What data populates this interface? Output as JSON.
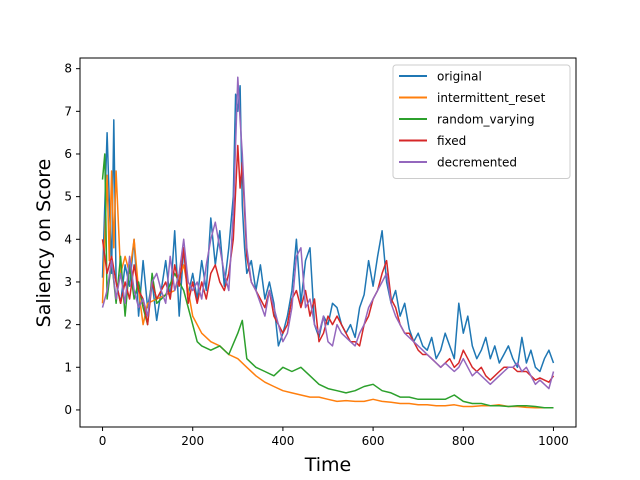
{
  "chart_data": {
    "type": "line",
    "title": "",
    "xlabel": "Time",
    "ylabel": "Saliency on Score",
    "xlim": [
      -50,
      1050
    ],
    "ylim": [
      -0.4,
      8.25
    ],
    "xticks": [
      0,
      200,
      400,
      600,
      800,
      1000
    ],
    "yticks": [
      0,
      1,
      2,
      3,
      4,
      5,
      6,
      7,
      8
    ],
    "grid": false,
    "legend_position": "top-right",
    "series": [
      {
        "name": "original",
        "color": "#1f77b4",
        "x": [
          0,
          10,
          20,
          25,
          30,
          40,
          50,
          60,
          70,
          80,
          90,
          100,
          110,
          120,
          130,
          140,
          150,
          160,
          170,
          180,
          190,
          200,
          210,
          220,
          230,
          240,
          250,
          260,
          270,
          280,
          290,
          295,
          300,
          305,
          310,
          315,
          320,
          330,
          340,
          350,
          360,
          370,
          380,
          390,
          400,
          410,
          420,
          430,
          440,
          450,
          460,
          470,
          480,
          490,
          500,
          510,
          520,
          530,
          540,
          550,
          560,
          570,
          580,
          590,
          600,
          610,
          620,
          630,
          640,
          650,
          660,
          670,
          680,
          690,
          700,
          710,
          720,
          730,
          740,
          750,
          760,
          770,
          780,
          790,
          800,
          810,
          820,
          830,
          840,
          850,
          860,
          870,
          880,
          890,
          900,
          910,
          920,
          930,
          940,
          950,
          960,
          970,
          980,
          990,
          1000
        ],
        "y": [
          3.1,
          6.5,
          3.2,
          6.8,
          3.0,
          2.5,
          3.4,
          2.9,
          4.0,
          2.2,
          3.5,
          2.4,
          3.0,
          2.1,
          2.8,
          3.5,
          2.6,
          4.2,
          2.2,
          3.8,
          2.7,
          3.2,
          2.6,
          3.5,
          2.8,
          4.5,
          3.4,
          4.2,
          2.9,
          3.8,
          5.0,
          7.4,
          7.0,
          7.6,
          4.8,
          3.8,
          3.2,
          3.5,
          2.8,
          3.4,
          2.6,
          3.0,
          2.5,
          1.5,
          1.8,
          2.2,
          2.8,
          4.0,
          2.5,
          3.5,
          3.8,
          2.0,
          1.7,
          2.2,
          2.0,
          2.5,
          2.4,
          2.0,
          1.8,
          2.0,
          1.7,
          2.4,
          2.7,
          3.5,
          2.9,
          3.6,
          4.2,
          3.0,
          2.5,
          2.8,
          2.2,
          2.5,
          1.9,
          1.6,
          1.8,
          1.5,
          1.4,
          1.7,
          1.2,
          1.4,
          1.8,
          1.5,
          1.2,
          2.5,
          1.8,
          2.2,
          1.5,
          1.2,
          1.4,
          1.7,
          1.2,
          1.5,
          1.1,
          1.3,
          1.5,
          1.2,
          1.0,
          1.7,
          1.1,
          1.4,
          1.0,
          0.9,
          1.2,
          1.4,
          1.1
        ]
      },
      {
        "name": "intermittent_reset",
        "color": "#ff7f0e",
        "x": [
          0,
          10,
          15,
          20,
          25,
          30,
          40,
          50,
          60,
          70,
          80,
          90,
          100,
          120,
          140,
          160,
          180,
          200,
          220,
          240,
          260,
          280,
          300,
          320,
          340,
          360,
          380,
          400,
          420,
          440,
          460,
          480,
          500,
          520,
          540,
          560,
          580,
          600,
          620,
          640,
          660,
          680,
          700,
          720,
          740,
          760,
          780,
          800,
          820,
          840,
          860,
          880,
          900,
          920,
          940,
          960,
          980,
          1000
        ],
        "y": [
          2.5,
          5.5,
          3.5,
          5.6,
          3.8,
          5.6,
          3.2,
          3.6,
          3.2,
          4.0,
          2.8,
          2.0,
          2.5,
          2.6,
          2.7,
          2.8,
          3.4,
          2.2,
          1.8,
          1.6,
          1.5,
          1.3,
          1.2,
          1.0,
          0.8,
          0.65,
          0.55,
          0.45,
          0.4,
          0.35,
          0.3,
          0.3,
          0.25,
          0.2,
          0.22,
          0.2,
          0.2,
          0.25,
          0.2,
          0.18,
          0.15,
          0.15,
          0.12,
          0.12,
          0.1,
          0.1,
          0.12,
          0.08,
          0.08,
          0.1,
          0.1,
          0.12,
          0.08,
          0.08,
          0.06,
          0.05,
          0.05,
          0.05
        ]
      },
      {
        "name": "random_varying",
        "color": "#2ca02c",
        "x": [
          0,
          5,
          10,
          20,
          30,
          40,
          50,
          60,
          70,
          80,
          90,
          100,
          110,
          120,
          140,
          160,
          180,
          200,
          210,
          220,
          240,
          260,
          280,
          300,
          310,
          320,
          340,
          360,
          380,
          400,
          420,
          440,
          460,
          480,
          500,
          520,
          540,
          560,
          580,
          600,
          620,
          640,
          660,
          680,
          700,
          720,
          740,
          760,
          780,
          800,
          820,
          840,
          860,
          880,
          900,
          920,
          940,
          960,
          980,
          1000
        ],
        "y": [
          5.4,
          6.0,
          2.6,
          3.5,
          2.5,
          3.6,
          2.2,
          3.4,
          2.6,
          3.0,
          2.4,
          2.0,
          3.2,
          2.5,
          2.7,
          3.2,
          2.8,
          2.0,
          1.6,
          1.5,
          1.4,
          1.5,
          1.3,
          1.8,
          2.1,
          1.2,
          1.0,
          0.9,
          0.8,
          1.0,
          0.9,
          1.0,
          0.8,
          0.6,
          0.5,
          0.45,
          0.4,
          0.45,
          0.55,
          0.6,
          0.45,
          0.4,
          0.3,
          0.3,
          0.25,
          0.25,
          0.25,
          0.25,
          0.35,
          0.2,
          0.15,
          0.15,
          0.1,
          0.1,
          0.08,
          0.1,
          0.1,
          0.08,
          0.05,
          0.05
        ]
      },
      {
        "name": "fixed",
        "color": "#d62728",
        "x": [
          0,
          10,
          20,
          30,
          40,
          50,
          60,
          70,
          80,
          90,
          100,
          110,
          120,
          130,
          140,
          150,
          160,
          170,
          180,
          190,
          200,
          210,
          220,
          230,
          240,
          250,
          260,
          270,
          280,
          290,
          300,
          305,
          310,
          320,
          330,
          340,
          350,
          360,
          370,
          380,
          390,
          400,
          410,
          420,
          430,
          440,
          450,
          460,
          470,
          480,
          490,
          500,
          510,
          520,
          530,
          540,
          550,
          560,
          570,
          580,
          590,
          600,
          610,
          620,
          630,
          640,
          650,
          660,
          670,
          680,
          690,
          700,
          710,
          720,
          730,
          740,
          750,
          760,
          770,
          780,
          790,
          800,
          810,
          820,
          830,
          840,
          850,
          860,
          870,
          880,
          890,
          900,
          910,
          920,
          930,
          940,
          950,
          960,
          970,
          980,
          990,
          1000
        ],
        "y": [
          4.0,
          3.2,
          3.6,
          3.0,
          2.5,
          3.0,
          2.6,
          3.4,
          2.8,
          2.6,
          2.0,
          3.0,
          2.6,
          2.8,
          3.0,
          2.6,
          3.4,
          2.9,
          3.8,
          2.5,
          3.0,
          2.5,
          3.0,
          2.6,
          3.2,
          3.4,
          3.0,
          2.8,
          3.2,
          4.0,
          6.2,
          5.2,
          5.8,
          3.6,
          3.0,
          2.8,
          2.6,
          2.4,
          2.8,
          2.2,
          2.0,
          1.8,
          2.0,
          2.6,
          2.8,
          2.4,
          2.8,
          2.2,
          2.6,
          1.6,
          1.8,
          2.2,
          2.0,
          2.2,
          2.0,
          1.8,
          1.6,
          1.6,
          1.5,
          2.0,
          2.2,
          2.6,
          2.8,
          3.2,
          3.5,
          2.6,
          2.4,
          2.0,
          1.8,
          1.8,
          1.6,
          1.4,
          1.3,
          1.3,
          1.2,
          1.1,
          1.0,
          1.1,
          1.2,
          1.0,
          1.1,
          1.4,
          1.2,
          1.0,
          0.9,
          1.0,
          0.8,
          0.7,
          0.8,
          0.9,
          1.0,
          1.0,
          1.0,
          0.9,
          0.9,
          0.9,
          0.8,
          0.7,
          0.75,
          0.7,
          0.65,
          0.8
        ]
      },
      {
        "name": "decremented",
        "color": "#9467bd",
        "x": [
          0,
          10,
          20,
          30,
          40,
          50,
          60,
          70,
          80,
          90,
          100,
          110,
          120,
          130,
          140,
          150,
          160,
          170,
          180,
          190,
          200,
          210,
          220,
          230,
          240,
          250,
          260,
          270,
          280,
          290,
          300,
          305,
          310,
          320,
          330,
          340,
          350,
          360,
          370,
          380,
          390,
          400,
          410,
          420,
          430,
          440,
          450,
          460,
          470,
          480,
          490,
          500,
          510,
          520,
          530,
          540,
          550,
          560,
          570,
          580,
          590,
          600,
          610,
          620,
          630,
          640,
          650,
          660,
          670,
          680,
          690,
          700,
          710,
          720,
          730,
          740,
          750,
          760,
          770,
          780,
          790,
          800,
          810,
          820,
          830,
          840,
          850,
          860,
          870,
          880,
          890,
          900,
          910,
          920,
          930,
          940,
          950,
          960,
          970,
          980,
          990,
          1000
        ],
        "y": [
          2.4,
          2.8,
          3.5,
          2.6,
          3.2,
          2.5,
          3.6,
          2.8,
          2.4,
          2.6,
          2.2,
          3.0,
          3.2,
          2.8,
          2.5,
          3.6,
          2.8,
          3.2,
          4.0,
          3.0,
          2.8,
          3.0,
          2.6,
          3.4,
          4.0,
          4.4,
          3.8,
          3.2,
          2.8,
          4.6,
          7.8,
          6.8,
          6.0,
          3.8,
          3.0,
          2.8,
          2.5,
          2.2,
          2.8,
          2.4,
          2.0,
          1.6,
          1.8,
          2.4,
          3.6,
          3.8,
          2.4,
          2.6,
          2.0,
          1.8,
          2.2,
          1.6,
          1.5,
          2.0,
          1.8,
          1.7,
          1.6,
          1.5,
          1.8,
          2.0,
          2.4,
          2.6,
          2.8,
          3.0,
          3.2,
          2.5,
          2.2,
          2.0,
          1.8,
          1.7,
          1.6,
          1.5,
          1.4,
          1.3,
          1.2,
          1.1,
          1.0,
          1.1,
          1.0,
          0.9,
          1.0,
          1.2,
          1.0,
          0.8,
          0.9,
          0.8,
          0.7,
          0.6,
          0.7,
          0.8,
          0.9,
          1.0,
          1.0,
          1.1,
          0.9,
          1.0,
          0.8,
          0.6,
          0.7,
          0.6,
          0.5,
          0.9
        ]
      }
    ]
  }
}
